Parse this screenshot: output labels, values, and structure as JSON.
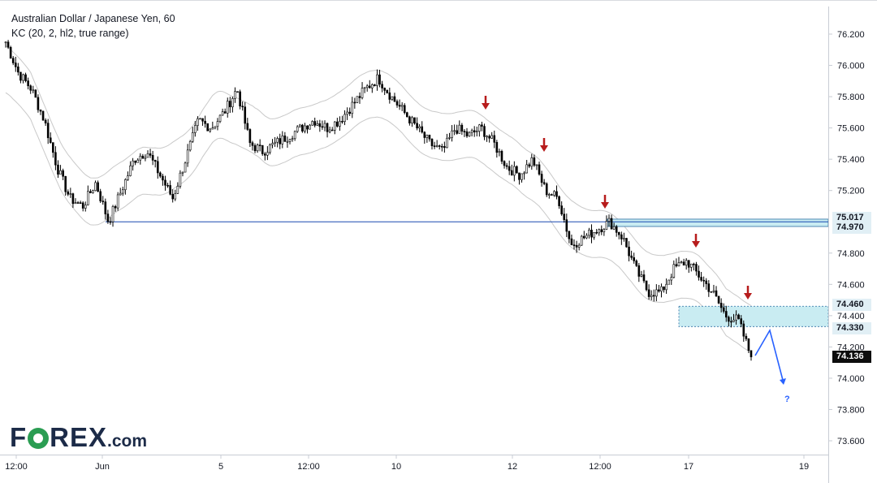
{
  "header": {
    "title": "Australian Dollar / Japanese Yen, 60",
    "indicator": "KC (20, 2, hl2, true range)"
  },
  "logo": {
    "main_pre": "F",
    "main_post": "REX",
    "dotcom": ".com"
  },
  "colors": {
    "candle": "#000000",
    "channel": "#c9c9c9",
    "level_line": "#1848b0",
    "zone_fill": "#c9ecf2",
    "zone_border": "#2b6ea3",
    "arrow": "#b71c1c",
    "projection": "#2962ff",
    "last_price_bg": "#0d0d0d"
  },
  "chart_data": {
    "type": "candlestick",
    "title": "Australian Dollar / Japanese Yen, 60",
    "indicator": "KC (20, 2, hl2, true range)",
    "y_axis": {
      "ylim": [
        73.5,
        76.3
      ],
      "ticks": [
        "76.200",
        "76.000",
        "75.800",
        "75.600",
        "75.400",
        "75.200",
        "74.800",
        "74.600",
        "74.400",
        "74.200",
        "74.000",
        "73.800",
        "73.600"
      ]
    },
    "x_axis": {
      "tick_labels": [
        "12:00",
        "Jun",
        "5",
        "12:00",
        "10",
        "12",
        "12:00",
        "17",
        "19"
      ]
    },
    "price_path": [
      76.15,
      75.95,
      75.85,
      75.65,
      75.35,
      75.15,
      75.1,
      75.25,
      75.0,
      75.2,
      75.4,
      75.45,
      75.3,
      75.15,
      75.4,
      75.65,
      75.6,
      75.7,
      75.85,
      75.5,
      75.45,
      75.5,
      75.55,
      75.6,
      75.65,
      75.6,
      75.65,
      75.75,
      75.85,
      75.92,
      75.8,
      75.7,
      75.6,
      75.5,
      75.45,
      75.6,
      75.55,
      75.6,
      75.5,
      75.35,
      75.3,
      75.4,
      75.2,
      75.15,
      74.85,
      74.9,
      74.95,
      75.0,
      74.9,
      74.7,
      74.55,
      74.55,
      74.7,
      74.75,
      74.65,
      74.55,
      74.4,
      74.37,
      74.136
    ],
    "levels": [
      {
        "label": "75.017",
        "value": 75.017,
        "style": "zone-top"
      },
      {
        "label": "74.970",
        "value": 74.97,
        "style": "line"
      },
      {
        "label": "74.460",
        "value": 74.46,
        "style": "zone-top"
      },
      {
        "label": "74.330",
        "value": 74.33,
        "style": "zone-bottom"
      }
    ],
    "zones": [
      {
        "from": 74.97,
        "to": 75.017
      },
      {
        "from": 74.33,
        "to": 74.46
      }
    ],
    "last_price": {
      "label": "74.136",
      "value": 74.136
    },
    "annotations": {
      "down_arrows": 5,
      "projection_label": "?"
    }
  }
}
